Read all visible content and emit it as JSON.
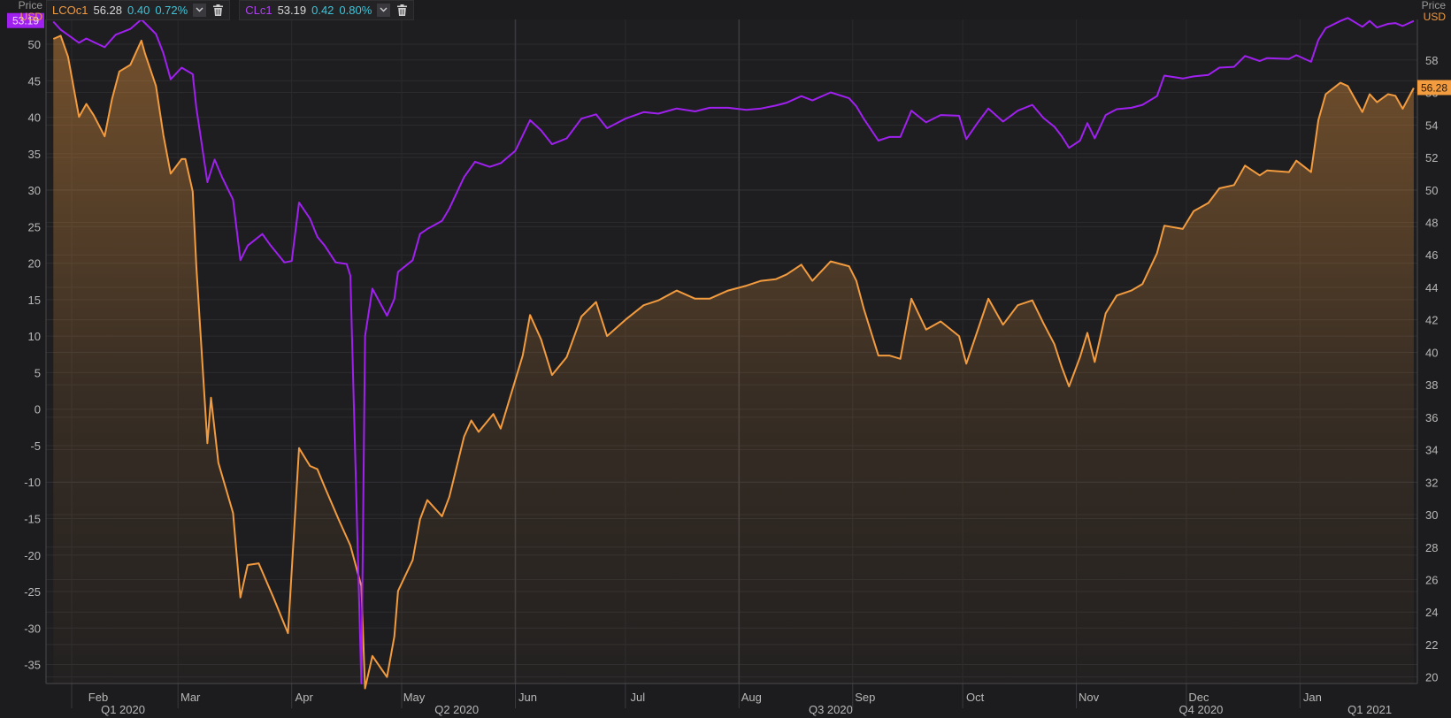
{
  "legend": {
    "series1": {
      "ric": "LCOc1",
      "last": "56.28",
      "change": "0.40",
      "pct": "0.72%",
      "color": "#f29b3f"
    },
    "series2": {
      "ric": "CLc1",
      "last": "53.19",
      "change": "0.42",
      "pct": "0.80%",
      "color": "#a020f0"
    },
    "menu_icon": "chevron-down-icon",
    "delete_icon": "trash-icon"
  },
  "left_axis": {
    "title": "Price",
    "unit": "USD"
  },
  "right_axis": {
    "title": "Price",
    "unit": "USD"
  },
  "chart_data": {
    "type": "line",
    "x_ticks": [
      "Feb",
      "Mar",
      "Apr",
      "May",
      "Jun",
      "Jul",
      "Aug",
      "Sep",
      "Oct",
      "Nov",
      "Dec",
      "Jan"
    ],
    "quarter_ticks": [
      "Q1 2020",
      "Q2 2020",
      "Q3 2020",
      "Q4 2020",
      "Q1 2021"
    ],
    "left_y": {
      "ticks": [
        50,
        45,
        40,
        35,
        30,
        25,
        20,
        15,
        10,
        5,
        0,
        -5,
        -10,
        -15,
        -20,
        -25,
        -30,
        -35
      ],
      "range": [
        -37.6,
        53.4
      ]
    },
    "right_y": {
      "ticks": [
        58,
        56,
        54,
        52,
        50,
        48,
        46,
        44,
        42,
        40,
        38,
        36,
        34,
        32,
        30,
        28,
        26,
        24,
        22,
        20
      ],
      "range": [
        19.6,
        60.5
      ]
    },
    "grid": true,
    "series": [
      {
        "name": "CLc1",
        "axis": "left",
        "color": "#a020f0",
        "last_label": "53.19",
        "points": [
          [
            "2020-01-27",
            53.1
          ],
          [
            "2020-01-29",
            52.0
          ],
          [
            "2020-02-03",
            50.2
          ],
          [
            "2020-02-05",
            50.8
          ],
          [
            "2020-02-07",
            50.3
          ],
          [
            "2020-02-10",
            49.6
          ],
          [
            "2020-02-13",
            51.3
          ],
          [
            "2020-02-17",
            52.1
          ],
          [
            "2020-02-20",
            53.4
          ],
          [
            "2020-02-24",
            51.4
          ],
          [
            "2020-02-26",
            48.8
          ],
          [
            "2020-02-28",
            45.2
          ],
          [
            "2020-03-02",
            46.8
          ],
          [
            "2020-03-05",
            45.9
          ],
          [
            "2020-03-06",
            41.3
          ],
          [
            "2020-03-09",
            31.1
          ],
          [
            "2020-03-11",
            34.2
          ],
          [
            "2020-03-13",
            31.8
          ],
          [
            "2020-03-16",
            28.7
          ],
          [
            "2020-03-18",
            20.4
          ],
          [
            "2020-03-20",
            22.4
          ],
          [
            "2020-03-24",
            24.0
          ],
          [
            "2020-03-26",
            22.6
          ],
          [
            "2020-03-30",
            20.1
          ],
          [
            "2020-04-01",
            20.3
          ],
          [
            "2020-04-03",
            28.3
          ],
          [
            "2020-04-06",
            26.1
          ],
          [
            "2020-04-08",
            23.6
          ],
          [
            "2020-04-10",
            22.4
          ],
          [
            "2020-04-13",
            20.1
          ],
          [
            "2020-04-16",
            19.9
          ],
          [
            "2020-04-17",
            18.3
          ],
          [
            "2020-04-20",
            -37.6
          ],
          [
            "2020-04-21",
            10.0
          ],
          [
            "2020-04-23",
            16.5
          ],
          [
            "2020-04-27",
            12.8
          ],
          [
            "2020-04-29",
            15.1
          ],
          [
            "2020-04-30",
            18.8
          ],
          [
            "2020-05-04",
            20.4
          ],
          [
            "2020-05-06",
            24.0
          ],
          [
            "2020-05-08",
            24.7
          ],
          [
            "2020-05-12",
            25.8
          ],
          [
            "2020-05-14",
            27.5
          ],
          [
            "2020-05-18",
            31.8
          ],
          [
            "2020-05-21",
            33.9
          ],
          [
            "2020-05-25",
            33.2
          ],
          [
            "2020-05-28",
            33.7
          ],
          [
            "2020-06-01",
            35.4
          ],
          [
            "2020-06-05",
            39.6
          ],
          [
            "2020-06-08",
            38.2
          ],
          [
            "2020-06-11",
            36.3
          ],
          [
            "2020-06-15",
            37.1
          ],
          [
            "2020-06-19",
            39.8
          ],
          [
            "2020-06-23",
            40.4
          ],
          [
            "2020-06-26",
            38.5
          ],
          [
            "2020-07-01",
            39.8
          ],
          [
            "2020-07-06",
            40.7
          ],
          [
            "2020-07-10",
            40.5
          ],
          [
            "2020-07-15",
            41.2
          ],
          [
            "2020-07-20",
            40.8
          ],
          [
            "2020-07-24",
            41.3
          ],
          [
            "2020-07-29",
            41.3
          ],
          [
            "2020-08-03",
            41.0
          ],
          [
            "2020-08-07",
            41.2
          ],
          [
            "2020-08-11",
            41.6
          ],
          [
            "2020-08-14",
            42.0
          ],
          [
            "2020-08-18",
            42.9
          ],
          [
            "2020-08-21",
            42.3
          ],
          [
            "2020-08-26",
            43.4
          ],
          [
            "2020-08-31",
            42.6
          ],
          [
            "2020-09-02",
            41.5
          ],
          [
            "2020-09-04",
            39.8
          ],
          [
            "2020-09-08",
            36.8
          ],
          [
            "2020-09-11",
            37.3
          ],
          [
            "2020-09-14",
            37.3
          ],
          [
            "2020-09-17",
            40.9
          ],
          [
            "2020-09-21",
            39.3
          ],
          [
            "2020-09-25",
            40.3
          ],
          [
            "2020-09-30",
            40.2
          ],
          [
            "2020-10-02",
            37.0
          ],
          [
            "2020-10-05",
            39.2
          ],
          [
            "2020-10-08",
            41.2
          ],
          [
            "2020-10-12",
            39.4
          ],
          [
            "2020-10-16",
            40.9
          ],
          [
            "2020-10-20",
            41.7
          ],
          [
            "2020-10-23",
            39.9
          ],
          [
            "2020-10-26",
            38.7
          ],
          [
            "2020-10-28",
            37.4
          ],
          [
            "2020-10-30",
            35.8
          ],
          [
            "2020-11-02",
            36.8
          ],
          [
            "2020-11-04",
            39.2
          ],
          [
            "2020-11-06",
            37.1
          ],
          [
            "2020-11-09",
            40.3
          ],
          [
            "2020-11-12",
            41.1
          ],
          [
            "2020-11-16",
            41.3
          ],
          [
            "2020-11-19",
            41.7
          ],
          [
            "2020-11-23",
            42.9
          ],
          [
            "2020-11-25",
            45.7
          ],
          [
            "2020-11-30",
            45.3
          ],
          [
            "2020-12-03",
            45.6
          ],
          [
            "2020-12-07",
            45.8
          ],
          [
            "2020-12-10",
            46.8
          ],
          [
            "2020-12-14",
            46.9
          ],
          [
            "2020-12-17",
            48.4
          ],
          [
            "2020-12-21",
            47.7
          ],
          [
            "2020-12-23",
            48.1
          ],
          [
            "2020-12-29",
            48.0
          ],
          [
            "2020-12-31",
            48.5
          ],
          [
            "2021-01-04",
            47.6
          ],
          [
            "2021-01-06",
            50.6
          ],
          [
            "2021-01-08",
            52.2
          ],
          [
            "2021-01-12",
            53.2
          ],
          [
            "2021-01-14",
            53.6
          ],
          [
            "2021-01-18",
            52.4
          ],
          [
            "2021-01-20",
            53.2
          ],
          [
            "2021-01-22",
            52.3
          ],
          [
            "2021-01-25",
            52.8
          ],
          [
            "2021-01-27",
            52.9
          ],
          [
            "2021-01-29",
            52.5
          ],
          [
            "2021-02-01",
            53.19
          ]
        ]
      },
      {
        "name": "LCOc1",
        "axis": "right",
        "color": "#f29b3f",
        "last_label": "56.28",
        "points": [
          [
            "2020-01-27",
            59.3
          ],
          [
            "2020-01-29",
            59.5
          ],
          [
            "2020-01-31",
            58.2
          ],
          [
            "2020-02-03",
            54.5
          ],
          [
            "2020-02-05",
            55.3
          ],
          [
            "2020-02-07",
            54.6
          ],
          [
            "2020-02-10",
            53.3
          ],
          [
            "2020-02-12",
            55.6
          ],
          [
            "2020-02-14",
            57.3
          ],
          [
            "2020-02-17",
            57.7
          ],
          [
            "2020-02-20",
            59.2
          ],
          [
            "2020-02-21",
            58.4
          ],
          [
            "2020-02-24",
            56.4
          ],
          [
            "2020-02-26",
            53.4
          ],
          [
            "2020-02-28",
            51.0
          ],
          [
            "2020-03-02",
            51.9
          ],
          [
            "2020-03-03",
            51.9
          ],
          [
            "2020-03-05",
            49.9
          ],
          [
            "2020-03-06",
            45.3
          ],
          [
            "2020-03-09",
            34.4
          ],
          [
            "2020-03-10",
            37.2
          ],
          [
            "2020-03-12",
            33.2
          ],
          [
            "2020-03-16",
            30.1
          ],
          [
            "2020-03-18",
            24.9
          ],
          [
            "2020-03-20",
            26.9
          ],
          [
            "2020-03-23",
            27.0
          ],
          [
            "2020-03-27",
            24.9
          ],
          [
            "2020-03-31",
            22.7
          ],
          [
            "2020-04-03",
            34.1
          ],
          [
            "2020-04-06",
            33.0
          ],
          [
            "2020-04-08",
            32.8
          ],
          [
            "2020-04-10",
            31.7
          ],
          [
            "2020-04-14",
            29.6
          ],
          [
            "2020-04-17",
            28.1
          ],
          [
            "2020-04-20",
            25.6
          ],
          [
            "2020-04-21",
            19.3
          ],
          [
            "2020-04-23",
            21.3
          ],
          [
            "2020-04-27",
            20.0
          ],
          [
            "2020-04-29",
            22.5
          ],
          [
            "2020-04-30",
            25.3
          ],
          [
            "2020-05-04",
            27.2
          ],
          [
            "2020-05-06",
            29.7
          ],
          [
            "2020-05-08",
            30.9
          ],
          [
            "2020-05-12",
            29.9
          ],
          [
            "2020-05-14",
            31.1
          ],
          [
            "2020-05-18",
            34.8
          ],
          [
            "2020-05-20",
            35.8
          ],
          [
            "2020-05-22",
            35.1
          ],
          [
            "2020-05-26",
            36.2
          ],
          [
            "2020-05-28",
            35.3
          ],
          [
            "2020-06-01",
            38.3
          ],
          [
            "2020-06-03",
            39.8
          ],
          [
            "2020-06-05",
            42.3
          ],
          [
            "2020-06-08",
            40.8
          ],
          [
            "2020-06-11",
            38.6
          ],
          [
            "2020-06-15",
            39.7
          ],
          [
            "2020-06-19",
            42.2
          ],
          [
            "2020-06-23",
            43.1
          ],
          [
            "2020-06-26",
            41.0
          ],
          [
            "2020-07-01",
            42.0
          ],
          [
            "2020-07-06",
            42.9
          ],
          [
            "2020-07-10",
            43.2
          ],
          [
            "2020-07-15",
            43.8
          ],
          [
            "2020-07-20",
            43.3
          ],
          [
            "2020-07-24",
            43.3
          ],
          [
            "2020-07-29",
            43.8
          ],
          [
            "2020-08-03",
            44.1
          ],
          [
            "2020-08-07",
            44.4
          ],
          [
            "2020-08-11",
            44.5
          ],
          [
            "2020-08-14",
            44.8
          ],
          [
            "2020-08-18",
            45.4
          ],
          [
            "2020-08-21",
            44.4
          ],
          [
            "2020-08-26",
            45.6
          ],
          [
            "2020-08-31",
            45.3
          ],
          [
            "2020-09-02",
            44.4
          ],
          [
            "2020-09-04",
            42.7
          ],
          [
            "2020-09-08",
            39.8
          ],
          [
            "2020-09-11",
            39.8
          ],
          [
            "2020-09-14",
            39.6
          ],
          [
            "2020-09-17",
            43.3
          ],
          [
            "2020-09-21",
            41.4
          ],
          [
            "2020-09-25",
            41.9
          ],
          [
            "2020-09-30",
            41.0
          ],
          [
            "2020-10-02",
            39.3
          ],
          [
            "2020-10-05",
            41.3
          ],
          [
            "2020-10-08",
            43.3
          ],
          [
            "2020-10-12",
            41.7
          ],
          [
            "2020-10-16",
            42.9
          ],
          [
            "2020-10-20",
            43.2
          ],
          [
            "2020-10-23",
            41.8
          ],
          [
            "2020-10-26",
            40.5
          ],
          [
            "2020-10-28",
            39.1
          ],
          [
            "2020-10-30",
            37.9
          ],
          [
            "2020-11-02",
            39.7
          ],
          [
            "2020-11-04",
            41.2
          ],
          [
            "2020-11-06",
            39.4
          ],
          [
            "2020-11-09",
            42.4
          ],
          [
            "2020-11-12",
            43.5
          ],
          [
            "2020-11-16",
            43.8
          ],
          [
            "2020-11-19",
            44.2
          ],
          [
            "2020-11-23",
            46.1
          ],
          [
            "2020-11-25",
            47.8
          ],
          [
            "2020-11-30",
            47.6
          ],
          [
            "2020-12-03",
            48.7
          ],
          [
            "2020-12-07",
            49.2
          ],
          [
            "2020-12-10",
            50.1
          ],
          [
            "2020-12-14",
            50.3
          ],
          [
            "2020-12-17",
            51.5
          ],
          [
            "2020-12-21",
            50.9
          ],
          [
            "2020-12-23",
            51.2
          ],
          [
            "2020-12-29",
            51.1
          ],
          [
            "2020-12-31",
            51.8
          ],
          [
            "2021-01-04",
            51.1
          ],
          [
            "2021-01-06",
            54.3
          ],
          [
            "2021-01-08",
            55.9
          ],
          [
            "2021-01-12",
            56.6
          ],
          [
            "2021-01-14",
            56.4
          ],
          [
            "2021-01-18",
            54.8
          ],
          [
            "2021-01-20",
            55.9
          ],
          [
            "2021-01-22",
            55.4
          ],
          [
            "2021-01-25",
            55.9
          ],
          [
            "2021-01-27",
            55.8
          ],
          [
            "2021-01-29",
            55.0
          ],
          [
            "2021-02-01",
            56.28
          ]
        ]
      }
    ]
  }
}
